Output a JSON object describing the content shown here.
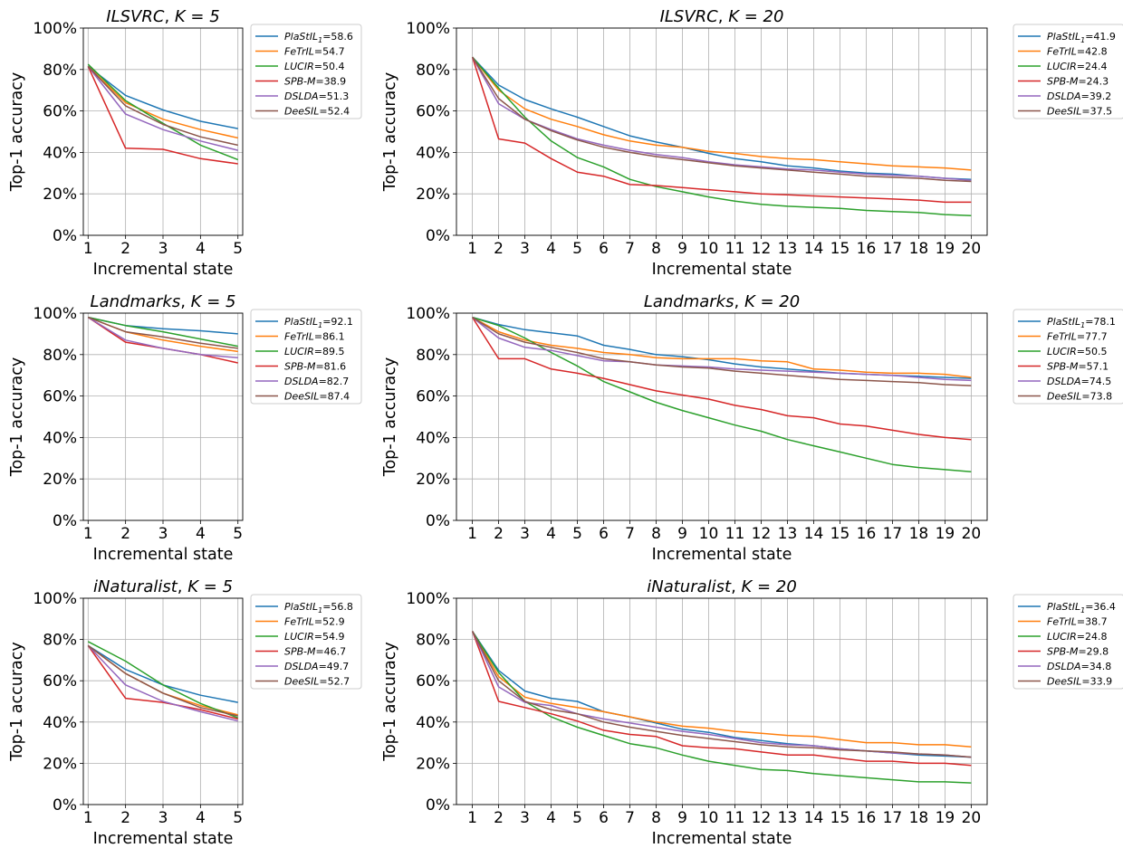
{
  "figure": {
    "xlabel": "Incremental state",
    "ylabel": "Top-1 accuracy"
  },
  "colors": {
    "PlaStIL1": "#1f77b4",
    "FeTrIL": "#ff7f0e",
    "LUCIR": "#2ca02c",
    "SPB-M": "#d62728",
    "DSLDA": "#9467bd",
    "DeeSIL": "#8c564b"
  },
  "chart_data": [
    {
      "type": "line",
      "title": "ILSVRC, K = 5",
      "title_name": "ILSVRC",
      "title_k": "K = 5",
      "xlabel": "Incremental state",
      "ylabel": "Top-1 accuracy",
      "x": [
        1,
        2,
        3,
        4,
        5
      ],
      "ylim": [
        0,
        100
      ],
      "yticks": [
        "0%",
        "20%",
        "40%",
        "60%",
        "80%",
        "100%"
      ],
      "grid": true,
      "legend": "outside-right",
      "series": [
        {
          "key": "PlaStIL1",
          "name": "PlaStIL",
          "sub": "1",
          "score": "=58.6",
          "values": [
            81.5,
            67.5,
            60.5,
            55,
            51.5
          ]
        },
        {
          "key": "FeTrIL",
          "name": "FeTrIL",
          "score": "=54.7",
          "values": [
            81.5,
            64,
            56,
            51,
            47
          ]
        },
        {
          "key": "LUCIR",
          "name": "LUCIR",
          "score": "=50.4",
          "values": [
            82.5,
            65,
            54,
            43.5,
            36.5
          ]
        },
        {
          "key": "SPB-M",
          "name": "SPB-M",
          "score": "=38.9",
          "values": [
            81.5,
            42,
            41.5,
            37,
            34.5
          ]
        },
        {
          "key": "DSLDA",
          "name": "DSLDA",
          "score": "=51.3",
          "values": [
            81.5,
            58.5,
            51,
            45.5,
            41
          ]
        },
        {
          "key": "DeeSIL",
          "name": "DeeSIL",
          "score": "=52.4",
          "values": [
            81.5,
            62.5,
            53.5,
            47.5,
            43.5
          ]
        }
      ]
    },
    {
      "type": "line",
      "title": "ILSVRC, K = 20",
      "title_name": "ILSVRC",
      "title_k": "K = 20",
      "xlabel": "Incremental state",
      "ylabel": "Top-1 accuracy",
      "x": [
        1,
        2,
        3,
        4,
        5,
        6,
        7,
        8,
        9,
        10,
        11,
        12,
        13,
        14,
        15,
        16,
        17,
        18,
        19,
        20
      ],
      "ylim": [
        0,
        100
      ],
      "yticks": [
        "0%",
        "20%",
        "40%",
        "60%",
        "80%",
        "100%"
      ],
      "grid": true,
      "legend": "outside-right",
      "series": [
        {
          "key": "PlaStIL1",
          "name": "PlaStIL",
          "sub": "1",
          "score": "=41.9",
          "values": [
            86,
            72.5,
            65.5,
            61,
            57,
            52.5,
            48,
            45,
            42.5,
            39.5,
            37,
            35.5,
            33.5,
            32.5,
            31,
            30,
            29.5,
            28.5,
            27.5,
            27
          ]
        },
        {
          "key": "FeTrIL",
          "name": "FeTrIL",
          "score": "=42.8",
          "values": [
            86,
            70,
            61,
            56,
            52.5,
            48.5,
            45.5,
            43.5,
            42.5,
            40.5,
            39.5,
            38,
            37,
            36.5,
            35.5,
            34.5,
            33.5,
            33,
            32.5,
            31.5
          ]
        },
        {
          "key": "LUCIR",
          "name": "LUCIR",
          "score": "=24.4",
          "values": [
            86,
            71,
            57,
            45.5,
            37.5,
            33,
            27,
            23.5,
            21,
            18.5,
            16.5,
            15,
            14,
            13.5,
            13,
            12,
            11.5,
            11,
            10,
            9.5
          ]
        },
        {
          "key": "SPB-M",
          "name": "SPB-M",
          "score": "=24.3",
          "values": [
            86,
            46.5,
            44.5,
            37,
            30.5,
            28.5,
            24.5,
            24,
            23,
            22,
            21,
            20,
            19.5,
            19,
            18.5,
            18,
            17.5,
            17,
            16,
            16
          ]
        },
        {
          "key": "DSLDA",
          "name": "DSLDA",
          "score": "=39.2",
          "values": [
            86,
            63.5,
            56,
            51,
            46.5,
            43.5,
            41,
            39,
            37.5,
            35.5,
            34,
            33,
            32,
            31.5,
            30.5,
            29.5,
            29,
            28.5,
            27.5,
            26.5
          ]
        },
        {
          "key": "DeeSIL",
          "name": "DeeSIL",
          "score": "=37.5",
          "values": [
            86,
            66,
            56,
            50.5,
            46,
            42.5,
            40,
            38,
            36.5,
            35,
            33.5,
            32.5,
            31.5,
            30.5,
            29.5,
            28.5,
            28,
            27.5,
            26.5,
            26
          ]
        }
      ]
    },
    {
      "type": "line",
      "title": "Landmarks, K = 5",
      "title_name": "Landmarks",
      "title_k": "K = 5",
      "xlabel": "Incremental state",
      "ylabel": "Top-1 accuracy",
      "x": [
        1,
        2,
        3,
        4,
        5
      ],
      "ylim": [
        0,
        100
      ],
      "yticks": [
        "0%",
        "20%",
        "40%",
        "60%",
        "80%",
        "100%"
      ],
      "grid": true,
      "legend": "outside-right",
      "series": [
        {
          "key": "PlaStIL1",
          "name": "PlaStIL",
          "sub": "1",
          "score": "=92.1",
          "values": [
            98,
            94,
            92.5,
            91.5,
            90
          ]
        },
        {
          "key": "FeTrIL",
          "name": "FeTrIL",
          "score": "=86.1",
          "values": [
            98,
            91,
            87,
            84,
            81.5
          ]
        },
        {
          "key": "LUCIR",
          "name": "LUCIR",
          "score": "=89.5",
          "values": [
            98,
            94,
            91,
            87.5,
            84
          ]
        },
        {
          "key": "SPB-M",
          "name": "SPB-M",
          "score": "=81.6",
          "values": [
            98,
            86,
            83,
            80,
            76
          ]
        },
        {
          "key": "DSLDA",
          "name": "DSLDA",
          "score": "=82.7",
          "values": [
            98,
            87,
            83,
            80,
            78.5
          ]
        },
        {
          "key": "DeeSIL",
          "name": "DeeSIL",
          "score": "=87.4",
          "values": [
            98,
            91,
            88.5,
            85.5,
            83
          ]
        }
      ]
    },
    {
      "type": "line",
      "title": "Landmarks, K = 20",
      "title_name": "Landmarks",
      "title_k": "K = 20",
      "xlabel": "Incremental state",
      "ylabel": "Top-1 accuracy",
      "x": [
        1,
        2,
        3,
        4,
        5,
        6,
        7,
        8,
        9,
        10,
        11,
        12,
        13,
        14,
        15,
        16,
        17,
        18,
        19,
        20
      ],
      "ylim": [
        0,
        100
      ],
      "yticks": [
        "0%",
        "20%",
        "40%",
        "60%",
        "80%",
        "100%"
      ],
      "grid": true,
      "legend": "outside-right",
      "series": [
        {
          "key": "PlaStIL1",
          "name": "PlaStIL",
          "sub": "1",
          "score": "=78.1",
          "values": [
            98,
            94.5,
            92,
            90.5,
            89,
            84.5,
            82.5,
            80,
            79,
            77.5,
            75.5,
            74,
            73,
            72,
            71,
            70.5,
            70,
            69.5,
            69,
            68.5
          ]
        },
        {
          "key": "FeTrIL",
          "name": "FeTrIL",
          "score": "=77.7",
          "values": [
            98,
            91,
            87,
            84.5,
            83,
            81,
            80,
            78.5,
            78,
            78,
            78,
            77,
            76.5,
            73,
            72.5,
            71.5,
            71,
            71,
            70.5,
            69
          ]
        },
        {
          "key": "LUCIR",
          "name": "LUCIR",
          "score": "=50.5",
          "values": [
            98,
            94,
            88,
            81,
            74.5,
            67,
            62,
            57,
            53,
            49.5,
            46,
            43,
            39,
            36,
            33,
            30,
            27,
            25.5,
            24.5,
            23.5
          ]
        },
        {
          "key": "SPB-M",
          "name": "SPB-M",
          "score": "=57.1",
          "values": [
            98,
            78,
            78,
            73,
            71,
            68.5,
            65.5,
            62.5,
            60.5,
            58.5,
            55.5,
            53.5,
            50.5,
            49.5,
            46.5,
            45.5,
            43.5,
            41.5,
            40,
            39
          ]
        },
        {
          "key": "DSLDA",
          "name": "DSLDA",
          "score": "=74.5",
          "values": [
            98,
            88,
            83.5,
            82,
            79.5,
            77,
            76.5,
            75,
            74.5,
            74,
            73,
            72.5,
            72,
            71.5,
            71,
            70.5,
            70,
            69,
            68,
            67.5
          ]
        },
        {
          "key": "DeeSIL",
          "name": "DeeSIL",
          "score": "=73.8",
          "values": [
            98,
            90,
            86,
            83.5,
            81,
            78,
            76.5,
            75,
            74,
            73.5,
            72,
            71,
            70,
            69,
            68,
            67.5,
            67,
            66.5,
            65.5,
            65
          ]
        }
      ]
    },
    {
      "type": "line",
      "title": "iNaturalist, K = 5",
      "title_name": "iNaturalist",
      "title_k": "K = 5",
      "xlabel": "Incremental state",
      "ylabel": "Top-1 accuracy",
      "x": [
        1,
        2,
        3,
        4,
        5
      ],
      "ylim": [
        0,
        100
      ],
      "yticks": [
        "0%",
        "20%",
        "40%",
        "60%",
        "80%",
        "100%"
      ],
      "grid": true,
      "legend": "outside-right",
      "series": [
        {
          "key": "PlaStIL1",
          "name": "PlaStIL",
          "sub": "1",
          "score": "=56.8",
          "values": [
            77,
            65.5,
            58,
            53,
            49.5
          ]
        },
        {
          "key": "FeTrIL",
          "name": "FeTrIL",
          "score": "=52.9",
          "values": [
            77,
            63.5,
            54,
            48,
            43.5
          ]
        },
        {
          "key": "LUCIR",
          "name": "LUCIR",
          "score": "=54.9",
          "values": [
            79,
            69.5,
            58,
            49,
            42
          ]
        },
        {
          "key": "SPB-M",
          "name": "SPB-M",
          "score": "=46.7",
          "values": [
            77,
            51.5,
            49.5,
            46,
            41.5
          ]
        },
        {
          "key": "DSLDA",
          "name": "DSLDA",
          "score": "=49.7",
          "values": [
            77,
            58,
            50,
            45,
            40.5
          ]
        },
        {
          "key": "DeeSIL",
          "name": "DeeSIL",
          "score": "=52.7",
          "values": [
            77,
            63.5,
            54,
            47,
            43
          ]
        }
      ]
    },
    {
      "type": "line",
      "title": "iNaturalist, K = 20",
      "title_name": "iNaturalist",
      "title_k": "K = 20",
      "xlabel": "Incremental state",
      "ylabel": "Top-1 accuracy",
      "x": [
        1,
        2,
        3,
        4,
        5,
        6,
        7,
        8,
        9,
        10,
        11,
        12,
        13,
        14,
        15,
        16,
        17,
        18,
        19,
        20
      ],
      "ylim": [
        0,
        100
      ],
      "yticks": [
        "0%",
        "20%",
        "40%",
        "60%",
        "80%",
        "100%"
      ],
      "grid": true,
      "legend": "outside-right",
      "series": [
        {
          "key": "PlaStIL1",
          "name": "PlaStIL",
          "sub": "1",
          "score": "=36.4",
          "values": [
            84,
            65,
            55,
            51.5,
            50,
            45,
            42.5,
            39.5,
            36.5,
            35,
            32.5,
            31,
            29.5,
            28.5,
            27,
            26,
            25,
            24,
            23.5,
            23
          ]
        },
        {
          "key": "FeTrIL",
          "name": "FeTrIL",
          "score": "=38.7",
          "values": [
            84,
            62,
            52,
            49,
            47,
            45,
            42.5,
            40,
            38,
            37,
            35.5,
            34.5,
            33.5,
            33,
            31.5,
            30,
            30,
            29,
            29,
            28
          ]
        },
        {
          "key": "LUCIR",
          "name": "LUCIR",
          "score": "=24.8",
          "values": [
            84,
            64,
            50,
            42.5,
            37.5,
            33.5,
            29.5,
            27.5,
            24,
            21,
            19,
            17,
            16.5,
            15,
            14,
            13,
            12,
            11,
            11,
            10.5
          ]
        },
        {
          "key": "SPB-M",
          "name": "SPB-M",
          "score": "=29.8",
          "values": [
            84,
            50,
            47,
            44,
            40.5,
            36,
            34,
            33,
            28.5,
            27.5,
            27,
            25.5,
            24,
            24,
            22.5,
            21,
            21,
            20,
            20,
            19
          ]
        },
        {
          "key": "DSLDA",
          "name": "DSLDA",
          "score": "=34.8",
          "values": [
            84,
            57,
            49.5,
            48,
            44,
            41.5,
            39.5,
            37.5,
            35.5,
            34,
            32,
            30,
            29,
            28.5,
            27,
            26,
            25,
            24.5,
            24,
            23
          ]
        },
        {
          "key": "DeeSIL",
          "name": "DeeSIL",
          "score": "=33.9",
          "values": [
            84,
            60,
            50,
            46,
            44,
            40,
            37.5,
            35.5,
            33.5,
            32,
            30.5,
            29,
            28,
            27.5,
            26.5,
            26,
            25.5,
            24.5,
            24,
            23
          ]
        }
      ]
    }
  ]
}
